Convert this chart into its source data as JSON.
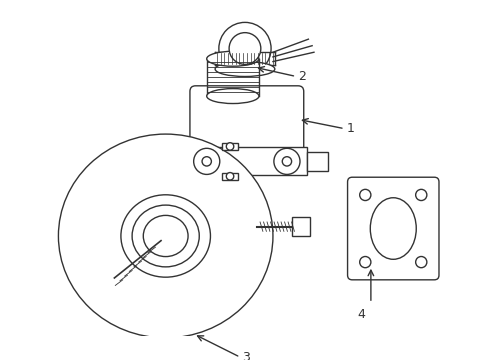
{
  "background_color": "#ffffff",
  "line_color": "#333333",
  "line_width": 1.0,
  "fig_width": 4.89,
  "fig_height": 3.6,
  "dpi": 100,
  "label_fontsize": 9
}
